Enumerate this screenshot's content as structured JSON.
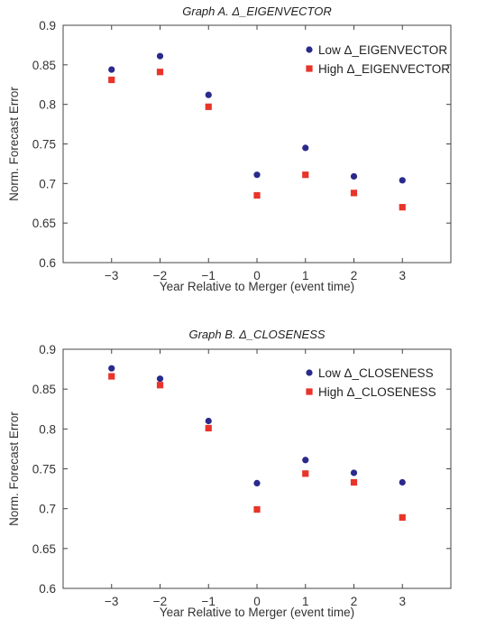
{
  "chart_data": [
    {
      "type": "scatter",
      "title": "Graph A. Δ_EIGENVECTOR",
      "xlabel": "Year Relative to Merger (event time)",
      "ylabel": "Norm. Forecast Error",
      "x": [
        -3,
        -2,
        -1,
        0,
        1,
        2,
        3
      ],
      "x_tick_labels": [
        "−3",
        "−2",
        "−1",
        "0",
        "1",
        "2",
        "3"
      ],
      "xlim": [
        -4,
        4
      ],
      "ylim": [
        0.6,
        0.9
      ],
      "y_ticks": [
        "0.6",
        "0.65",
        "0.7",
        "0.75",
        "0.8",
        "0.85",
        "0.9"
      ],
      "legend_position": "top-right",
      "series": [
        {
          "name": "Low Δ_EIGENVECTOR",
          "marker": "circle",
          "color": "#2a2a8c",
          "values": [
            0.844,
            0.861,
            0.812,
            0.711,
            0.745,
            0.709,
            0.704
          ]
        },
        {
          "name": "High Δ_EIGENVECTOR",
          "marker": "square",
          "color": "#e8342a",
          "values": [
            0.831,
            0.841,
            0.797,
            0.685,
            0.711,
            0.688,
            0.67
          ]
        }
      ]
    },
    {
      "type": "scatter",
      "title": "Graph B. Δ_CLOSENESS",
      "xlabel": "Year Relative to Merger (event time)",
      "ylabel": "Norm. Forecast Error",
      "x": [
        -3,
        -2,
        -1,
        0,
        1,
        2,
        3
      ],
      "x_tick_labels": [
        "−3",
        "−2",
        "−1",
        "0",
        "1",
        "2",
        "3"
      ],
      "xlim": [
        -4,
        4
      ],
      "ylim": [
        0.6,
        0.9
      ],
      "y_ticks": [
        "0.6",
        "0.65",
        "0.7",
        "0.75",
        "0.8",
        "0.85",
        "0.9"
      ],
      "legend_position": "top-right",
      "series": [
        {
          "name": "Low Δ_CLOSENESS",
          "marker": "circle",
          "color": "#2a2a8c",
          "values": [
            0.876,
            0.863,
            0.81,
            0.732,
            0.761,
            0.745,
            0.733
          ]
        },
        {
          "name": "High Δ_CLOSENESS",
          "marker": "square",
          "color": "#e8342a",
          "values": [
            0.866,
            0.855,
            0.801,
            0.699,
            0.744,
            0.733,
            0.689
          ]
        }
      ]
    }
  ]
}
